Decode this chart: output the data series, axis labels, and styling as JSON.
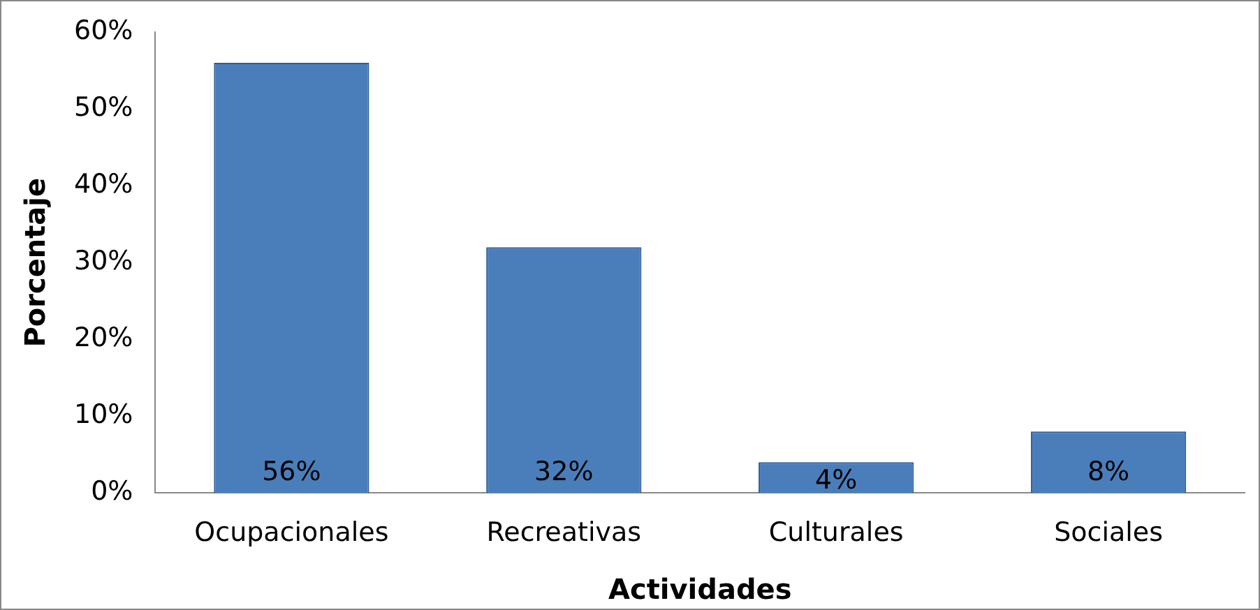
{
  "chart_data": {
    "type": "bar",
    "xlabel": "Actividades",
    "ylabel": "Porcentaje",
    "categories": [
      "Ocupacionales",
      "Recreativas",
      "Culturales",
      "Sociales"
    ],
    "values": [
      56,
      32,
      4,
      8
    ],
    "color": "#4a7ebb",
    "value_labels": [
      "56%",
      "32%",
      "4%",
      "8%"
    ],
    "ylim": [
      0,
      60
    ],
    "yticks": [
      {
        "value": 0,
        "label": "0%"
      },
      {
        "value": 10,
        "label": "10%"
      },
      {
        "value": 20,
        "label": "20%"
      },
      {
        "value": 30,
        "label": "30%"
      },
      {
        "value": 40,
        "label": "40%"
      },
      {
        "value": 50,
        "label": "50%"
      },
      {
        "value": 60,
        "label": "60%"
      }
    ],
    "grid": false,
    "legend": false
  }
}
